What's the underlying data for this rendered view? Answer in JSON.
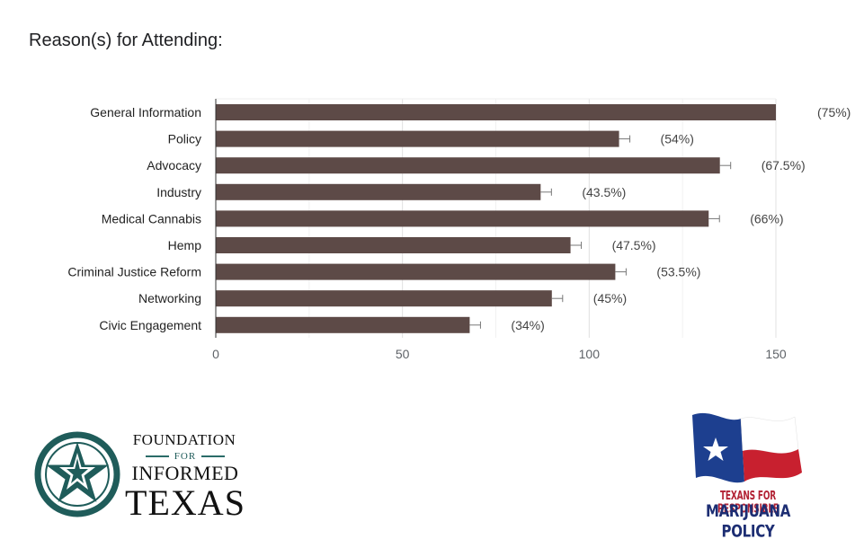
{
  "title": "Reason(s) for Attending:",
  "chart_data": {
    "type": "bar",
    "orientation": "horizontal",
    "title": "Reason(s) for Attending:",
    "xlabel": "",
    "ylabel": "",
    "xlim": [
      0,
      150
    ],
    "x_ticks": [
      "0",
      "50",
      "100",
      "150"
    ],
    "grid": true,
    "categories": [
      "General Information",
      "Policy",
      "Advocacy",
      "Industry",
      "Medical Cannabis",
      "Hemp",
      "Criminal Justice Reform",
      "Networking",
      "Civic Engagement"
    ],
    "values": [
      150,
      108,
      135,
      87,
      132,
      95,
      107,
      90,
      68
    ],
    "labels": [
      "(75%)",
      "(54%)",
      "(67.5%)",
      "(43.5%)",
      "(66%)",
      "(47.5%)",
      "(53.5%)",
      "(45%)",
      "(34%)"
    ],
    "bar_color": "#5d4a47"
  },
  "logos": {
    "left": {
      "foundation": "FOUNDATION",
      "for": "FOR",
      "informed": "INFORMED",
      "texas": "TEXAS",
      "color": "#1f5c5a"
    },
    "right": {
      "line1": "TEXANS FOR RESPONSIBLE",
      "line2": "MARIJUANA POLICY",
      "flag_blue": "#1d3f8f",
      "flag_red": "#c8202f"
    }
  }
}
